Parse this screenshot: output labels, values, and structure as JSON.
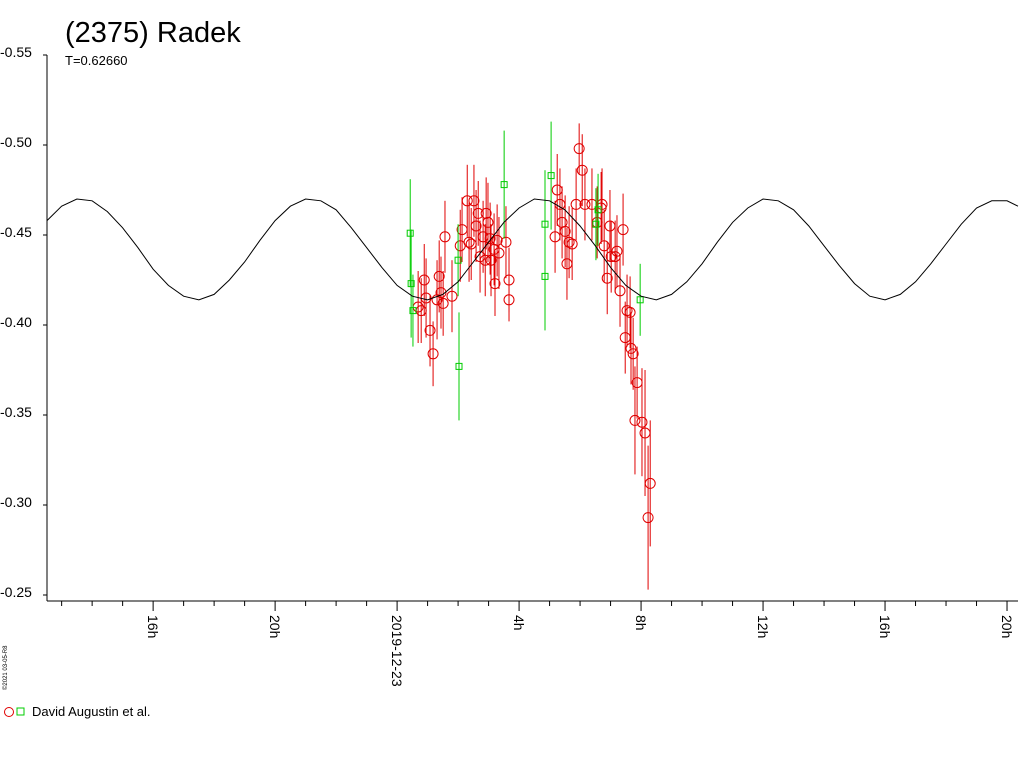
{
  "chart_data": {
    "type": "scatter",
    "title": "(2375) Radek",
    "subtitle": "T=0.62660",
    "footer": "©2021 03-05-R8",
    "legend_label": "David Augustin et al.",
    "xlim": [
      -11.48,
      20.36
    ],
    "ylim": [
      -0.25,
      -0.55
    ],
    "yticks": [
      {
        "value": -0.55,
        "label": "-0.55"
      },
      {
        "value": -0.5,
        "label": "-0.50"
      },
      -0.45,
      {
        "value": -0.4,
        "label": "-0.40"
      },
      -0.35,
      {
        "value": -0.3,
        "label": "-0.30"
      },
      -0.25
    ],
    "xticks": [
      {
        "value": -8,
        "label": "16h"
      },
      {
        "value": -4,
        "label": "20h"
      },
      {
        "value": 0,
        "label": "2019-12-23"
      },
      {
        "value": 4,
        "label": "4h"
      },
      {
        "value": 8,
        "label": "8h"
      },
      {
        "value": 12,
        "label": "12h"
      },
      {
        "value": 16,
        "label": "16h"
      },
      {
        "value": 20,
        "label": "20h"
      }
    ],
    "xminorticks": [
      -11,
      -10,
      -9,
      -7,
      -6,
      -5,
      -3,
      -2,
      -1,
      1,
      2,
      3,
      5,
      6,
      7,
      9,
      10,
      11,
      13,
      14,
      15,
      17,
      18,
      19
    ],
    "series": [
      {
        "type": "scatter",
        "marker": "circle",
        "color": "#e00000",
        "x": [
          0.69,
          0.79,
          0.89,
          0.95,
          1.08,
          1.18,
          1.31,
          1.38,
          1.44,
          1.51,
          1.57,
          1.8,
          2.07,
          2.13,
          2.3,
          2.36,
          2.43,
          2.52,
          2.59,
          2.66,
          2.72,
          2.82,
          2.89,
          2.92,
          2.98,
          3.05,
          3.08,
          3.18,
          3.21,
          3.28,
          3.34,
          3.57,
          3.67,
          3.67,
          5.18,
          5.25,
          5.34,
          5.41,
          5.51,
          5.57,
          5.64,
          5.74,
          5.87,
          5.97,
          6.07,
          6.16,
          6.39,
          6.56,
          6.69,
          6.72,
          6.79,
          6.89,
          6.98,
          7.02,
          7.15,
          7.21,
          7.31,
          7.41,
          7.48,
          7.54,
          7.64,
          7.67,
          7.74,
          7.87,
          7.8,
          8.03,
          8.13,
          8.23,
          8.3
        ],
        "values": [
          -0.41,
          -0.408,
          -0.425,
          -0.415,
          -0.397,
          -0.384,
          -0.414,
          -0.427,
          -0.418,
          -0.412,
          -0.449,
          -0.416,
          -0.444,
          -0.453,
          -0.469,
          -0.446,
          -0.445,
          -0.469,
          -0.455,
          -0.462,
          -0.438,
          -0.449,
          -0.436,
          -0.462,
          -0.457,
          -0.448,
          -0.436,
          -0.442,
          -0.423,
          -0.447,
          -0.44,
          -0.446,
          -0.425,
          -0.414,
          -0.449,
          -0.475,
          -0.467,
          -0.457,
          -0.452,
          -0.434,
          -0.446,
          -0.445,
          -0.467,
          -0.498,
          -0.486,
          -0.467,
          -0.467,
          -0.457,
          -0.465,
          -0.467,
          -0.444,
          -0.426,
          -0.455,
          -0.438,
          -0.438,
          -0.441,
          -0.419,
          -0.453,
          -0.393,
          -0.408,
          -0.407,
          -0.387,
          -0.384,
          -0.368,
          -0.347,
          -0.346,
          -0.34,
          -0.293,
          -0.312
        ],
        "errors": [
          0.02,
          0.018,
          0.02,
          0.022,
          0.02,
          0.018,
          0.022,
          0.02,
          0.02,
          0.018,
          0.02,
          0.02,
          0.02,
          0.018,
          0.02,
          0.022,
          0.02,
          0.02,
          0.02,
          0.018,
          0.02,
          0.02,
          0.02,
          0.02,
          0.022,
          0.02,
          0.02,
          0.02,
          0.018,
          0.02,
          0.02,
          0.02,
          0.018,
          0.012,
          0.02,
          0.02,
          0.02,
          0.02,
          0.02,
          0.02,
          0.02,
          0.02,
          0.02,
          0.014,
          0.02,
          0.02,
          0.02,
          0.02,
          0.02,
          0.02,
          0.02,
          0.02,
          0.02,
          0.02,
          0.02,
          0.02,
          0.02,
          0.02,
          0.02,
          0.02,
          0.02,
          0.02,
          0.02,
          0.02,
          0.03,
          0.03,
          0.035,
          0.04,
          0.035
        ]
      },
      {
        "type": "scatter",
        "marker": "square",
        "color": "#00cc00",
        "x": [
          0.43,
          0.46,
          0.52,
          2.0,
          2.03,
          3.51,
          4.85,
          4.85,
          5.05,
          6.52,
          6.59,
          7.97
        ],
        "values": [
          -0.451,
          -0.423,
          -0.408,
          -0.436,
          -0.377,
          -0.478,
          -0.456,
          -0.427,
          -0.483,
          -0.456,
          -0.464,
          -0.414
        ],
        "errors": [
          0.03,
          0.03,
          0.02,
          0.02,
          0.03,
          0.03,
          0.03,
          0.03,
          0.03,
          0.02,
          0.02,
          0.02
        ]
      },
      {
        "type": "line",
        "color": "#000000",
        "x": [
          -11.48,
          -11,
          -10.5,
          -10,
          -9.5,
          -9,
          -8.5,
          -8,
          -7.5,
          -7,
          -6.5,
          -6,
          -5.5,
          -5,
          -4.5,
          -4,
          -3.5,
          -3,
          -2.5,
          -2,
          -1.5,
          -1,
          -0.5,
          0,
          0.5,
          1,
          1.5,
          2,
          2.5,
          3,
          3.5,
          4,
          4.5,
          5,
          5.5,
          6,
          6.5,
          7,
          7.5,
          8,
          8.5,
          9,
          9.5,
          10,
          10.5,
          11,
          11.5,
          12,
          12.5,
          13,
          13.5,
          14,
          14.5,
          15,
          15.5,
          16,
          16.5,
          17,
          17.5,
          18,
          18.5,
          19,
          19.5,
          20,
          20.36
        ],
        "values": [
          -0.458,
          -0.466,
          -0.47,
          -0.469,
          -0.463,
          -0.454,
          -0.443,
          -0.431,
          -0.422,
          -0.416,
          -0.414,
          -0.417,
          -0.425,
          -0.435,
          -0.447,
          -0.458,
          -0.466,
          -0.47,
          -0.469,
          -0.464,
          -0.454,
          -0.443,
          -0.432,
          -0.422,
          -0.416,
          -0.414,
          -0.417,
          -0.424,
          -0.435,
          -0.446,
          -0.457,
          -0.465,
          -0.47,
          -0.469,
          -0.464,
          -0.455,
          -0.444,
          -0.432,
          -0.422,
          -0.416,
          -0.414,
          -0.417,
          -0.424,
          -0.434,
          -0.446,
          -0.457,
          -0.465,
          -0.47,
          -0.469,
          -0.464,
          -0.455,
          -0.444,
          -0.433,
          -0.423,
          -0.416,
          -0.414,
          -0.417,
          -0.424,
          -0.434,
          -0.445,
          -0.456,
          -0.465,
          -0.469,
          -0.469,
          -0.466
        ]
      }
    ]
  }
}
